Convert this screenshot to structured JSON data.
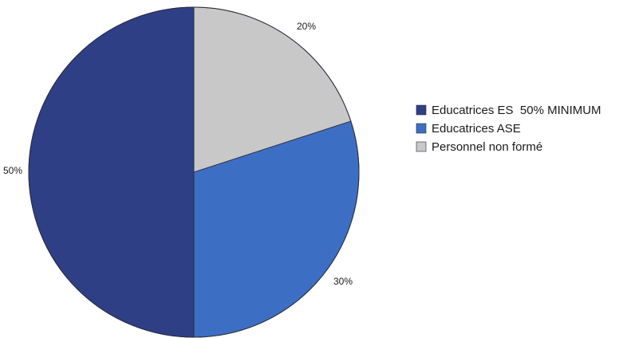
{
  "chart_data": {
    "type": "pie",
    "slices": [
      {
        "label": "Personnel non formé",
        "value": 20,
        "display": "20%",
        "color": "#c8c8c8"
      },
      {
        "label": "Educatrices ASE",
        "value": 30,
        "display": "30%",
        "color": "#3c6fc4"
      },
      {
        "label": "Educatrices ES  50% MINIMUM",
        "value": 50,
        "display": "50%",
        "color": "#2e3f86"
      }
    ],
    "start": "12 o'clock",
    "direction": "clockwise",
    "legend_placement": "right"
  }
}
